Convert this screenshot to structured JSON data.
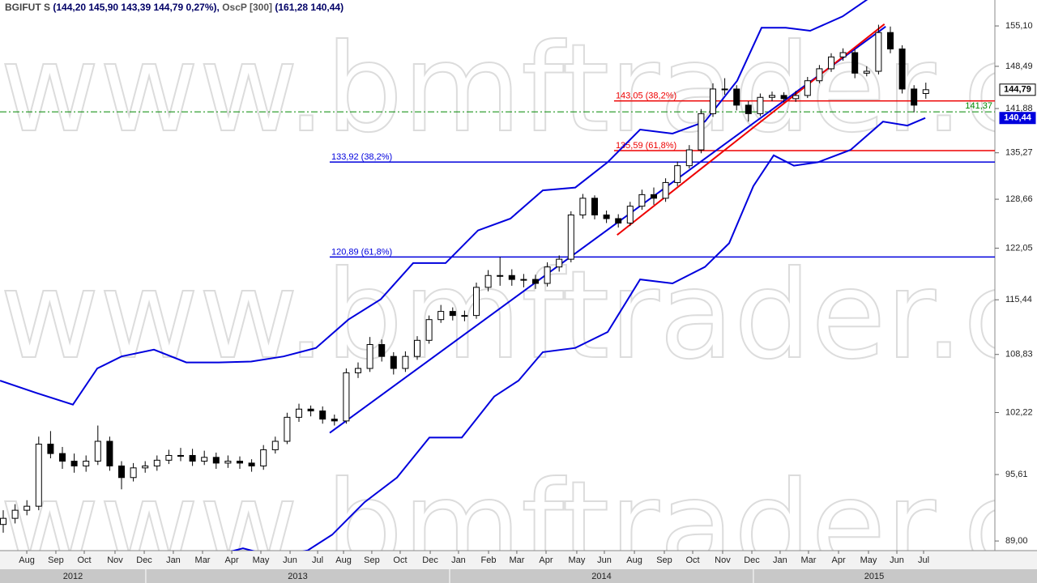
{
  "chart_data": {
    "type": "candlestick",
    "header": {
      "symbol": "BGIFUT S",
      "quote": "(144,20  145,90  143,39  144,79  0,27%),",
      "indicator": "OscP [300]",
      "indicator_values": "(161,28 140,44)"
    },
    "watermark": "www.bmftrader.com",
    "log_scale": true,
    "ylim": [
      88.08,
      159.5
    ],
    "yticks": [
      {
        "value": 155.1,
        "label": "155,10"
      },
      {
        "value": 148.49,
        "label": "148,49"
      },
      {
        "value": 141.88,
        "label": "141,88"
      },
      {
        "value": 135.27,
        "label": "135,27"
      },
      {
        "value": 128.66,
        "label": "128,66"
      },
      {
        "value": 122.05,
        "label": "122,05"
      },
      {
        "value": 115.44,
        "label": "115,44"
      },
      {
        "value": 108.83,
        "label": "108,83"
      },
      {
        "value": 102.22,
        "label": "102,22"
      },
      {
        "value": 95.61,
        "label": "95,61"
      },
      {
        "value": 89.0,
        "label": "89,00"
      }
    ],
    "xlim": [
      -0.274,
      83.836
    ],
    "xticks": [
      {
        "value": 1.99,
        "label": "Aug"
      },
      {
        "value": 4.45,
        "label": "Sep"
      },
      {
        "value": 6.85,
        "label": "Oct"
      },
      {
        "value": 9.45,
        "label": "Nov"
      },
      {
        "value": 11.92,
        "label": "Dec"
      },
      {
        "value": 14.38,
        "label": "Jan"
      },
      {
        "value": 16.85,
        "label": "Mar"
      },
      {
        "value": 19.32,
        "label": "Apr"
      },
      {
        "value": 21.78,
        "label": "May"
      },
      {
        "value": 24.25,
        "label": "Jun"
      },
      {
        "value": 26.58,
        "label": "Jul"
      },
      {
        "value": 28.77,
        "label": "Aug"
      },
      {
        "value": 31.16,
        "label": "Sep"
      },
      {
        "value": 33.56,
        "label": "Oct"
      },
      {
        "value": 36.1,
        "label": "Dec"
      },
      {
        "value": 38.49,
        "label": "Jan"
      },
      {
        "value": 41.03,
        "label": "Feb"
      },
      {
        "value": 43.42,
        "label": "Mar"
      },
      {
        "value": 45.89,
        "label": "Apr"
      },
      {
        "value": 48.49,
        "label": "May"
      },
      {
        "value": 50.82,
        "label": "Jun"
      },
      {
        "value": 53.36,
        "label": "Aug"
      },
      {
        "value": 55.89,
        "label": "Sep"
      },
      {
        "value": 58.29,
        "label": "Oct"
      },
      {
        "value": 60.82,
        "label": "Nov"
      },
      {
        "value": 63.29,
        "label": "Dec"
      },
      {
        "value": 65.68,
        "label": "Jan"
      },
      {
        "value": 68.08,
        "label": "Mar"
      },
      {
        "value": 70.62,
        "label": "Apr"
      },
      {
        "value": 73.15,
        "label": "May"
      },
      {
        "value": 75.55,
        "label": "Jun"
      },
      {
        "value": 77.81,
        "label": "Jul"
      }
    ],
    "years": [
      "2012",
      "2013",
      "2014",
      "2015"
    ],
    "year_breaks": [
      12.05,
      37.74,
      63.42
    ],
    "x": [
      0,
      1,
      2,
      3,
      4,
      5,
      6,
      7,
      8,
      9,
      10,
      11,
      12,
      13,
      14,
      15,
      16,
      17,
      18,
      19,
      20,
      21,
      22,
      23,
      24,
      25,
      26,
      27,
      28,
      29,
      30,
      31,
      32,
      33,
      34,
      35,
      36,
      37,
      38,
      39,
      40,
      41,
      42,
      43,
      44,
      45,
      46,
      47,
      48,
      49,
      50,
      51,
      52,
      53,
      54,
      55,
      56,
      57,
      58,
      59,
      60,
      61,
      62,
      63,
      64,
      65,
      66,
      67,
      68,
      69,
      70,
      71,
      72,
      73,
      74,
      75,
      76,
      77,
      78
    ],
    "ohlc": [
      [
        90.6,
        92.0,
        89.8,
        91.2
      ],
      [
        91.2,
        92.6,
        90.7,
        92.0
      ],
      [
        92.0,
        93.0,
        91.5,
        92.4
      ],
      [
        92.4,
        99.6,
        92.0,
        98.8
      ],
      [
        98.8,
        100.2,
        97.3,
        97.8
      ],
      [
        97.8,
        98.5,
        96.2,
        97.0
      ],
      [
        97.0,
        97.8,
        95.8,
        96.5
      ],
      [
        96.5,
        97.6,
        95.9,
        97.0
      ],
      [
        97.0,
        100.8,
        96.6,
        99.1
      ],
      [
        99.1,
        99.6,
        96.0,
        96.5
      ],
      [
        96.5,
        97.0,
        94.1,
        95.3
      ],
      [
        95.3,
        96.8,
        94.9,
        96.3
      ],
      [
        96.3,
        97.0,
        95.8,
        96.5
      ],
      [
        96.5,
        97.6,
        96.0,
        97.1
      ],
      [
        97.1,
        98.2,
        96.7,
        97.6
      ],
      [
        97.6,
        98.4,
        97.0,
        97.6
      ],
      [
        97.6,
        98.3,
        96.5,
        97.0
      ],
      [
        97.0,
        98.1,
        96.6,
        97.4
      ],
      [
        97.4,
        97.9,
        96.2,
        96.8
      ],
      [
        96.8,
        97.6,
        96.3,
        97.0
      ],
      [
        97.0,
        97.5,
        96.2,
        96.8
      ],
      [
        96.8,
        97.2,
        95.9,
        96.5
      ],
      [
        96.5,
        98.7,
        96.1,
        98.2
      ],
      [
        98.2,
        99.6,
        97.8,
        99.1
      ],
      [
        99.1,
        102.2,
        98.8,
        101.7
      ],
      [
        101.7,
        103.2,
        101.2,
        102.6
      ],
      [
        102.6,
        103.0,
        101.8,
        102.4
      ],
      [
        102.4,
        102.9,
        101.0,
        101.5
      ],
      [
        101.5,
        102.0,
        100.8,
        101.3
      ],
      [
        101.3,
        107.2,
        101.0,
        106.7
      ],
      [
        106.7,
        107.9,
        106.1,
        107.2
      ],
      [
        107.2,
        110.9,
        106.8,
        110.0
      ],
      [
        110.0,
        110.6,
        108.0,
        108.6
      ],
      [
        108.6,
        109.1,
        106.5,
        107.2
      ],
      [
        107.2,
        109.2,
        106.8,
        108.6
      ],
      [
        108.6,
        111.0,
        108.2,
        110.5
      ],
      [
        110.5,
        113.5,
        110.1,
        113.0
      ],
      [
        113.0,
        114.8,
        112.6,
        114.0
      ],
      [
        114.0,
        114.5,
        112.9,
        113.5
      ],
      [
        113.5,
        114.1,
        112.8,
        113.5
      ],
      [
        113.5,
        117.6,
        113.1,
        117.0
      ],
      [
        117.0,
        119.2,
        116.5,
        118.5
      ],
      [
        118.5,
        120.9,
        117.2,
        118.5
      ],
      [
        118.5,
        119.3,
        117.2,
        118.0
      ],
      [
        118.0,
        118.7,
        117.0,
        118.0
      ],
      [
        118.0,
        118.6,
        116.8,
        117.5
      ],
      [
        117.5,
        120.2,
        117.1,
        119.6
      ],
      [
        119.6,
        121.1,
        119.0,
        120.6
      ],
      [
        120.6,
        127.0,
        120.2,
        126.5
      ],
      [
        126.5,
        129.4,
        126.0,
        128.8
      ],
      [
        128.8,
        129.2,
        125.9,
        126.5
      ],
      [
        126.5,
        127.1,
        125.4,
        126.0
      ],
      [
        126.0,
        126.6,
        124.8,
        125.4
      ],
      [
        125.4,
        128.3,
        125.0,
        127.7
      ],
      [
        127.7,
        130.0,
        127.2,
        129.3
      ],
      [
        129.3,
        130.3,
        127.9,
        128.8
      ],
      [
        128.8,
        131.6,
        128.3,
        131.0
      ],
      [
        131.0,
        134.0,
        130.5,
        133.4
      ],
      [
        133.4,
        136.4,
        133.0,
        135.7
      ],
      [
        135.7,
        141.8,
        135.2,
        141.1
      ],
      [
        141.1,
        145.8,
        140.6,
        144.9
      ],
      [
        144.9,
        146.6,
        144.0,
        144.9
      ],
      [
        144.9,
        145.5,
        141.6,
        142.4
      ],
      [
        142.4,
        143.0,
        139.9,
        141.1
      ],
      [
        141.1,
        144.2,
        140.7,
        143.6
      ],
      [
        143.6,
        144.5,
        143.0,
        143.9
      ],
      [
        143.9,
        144.4,
        142.8,
        143.4
      ],
      [
        143.4,
        144.6,
        142.9,
        143.9
      ],
      [
        143.9,
        146.8,
        143.5,
        146.2
      ],
      [
        146.2,
        148.7,
        145.8,
        148.1
      ],
      [
        148.1,
        150.6,
        147.6,
        150.0
      ],
      [
        150.0,
        151.4,
        149.4,
        150.7
      ],
      [
        150.7,
        151.2,
        146.6,
        147.4
      ],
      [
        147.4,
        148.5,
        146.9,
        147.7
      ],
      [
        147.7,
        155.3,
        147.2,
        154.0
      ],
      [
        154.0,
        155.0,
        150.6,
        151.3
      ],
      [
        151.3,
        151.9,
        144.2,
        144.9
      ],
      [
        144.9,
        145.5,
        141.3,
        142.4
      ],
      [
        144.2,
        145.9,
        143.39,
        144.79
      ]
    ],
    "bands": [
      {
        "color": "#0000dd",
        "x": [
          -0.27,
          2.81,
          5.89,
          7.95,
          10.0,
          12.74,
          15.48,
          18.22,
          20.96,
          23.7,
          26.44,
          29.18,
          31.92,
          34.66,
          37.4,
          40.14,
          42.88,
          45.62,
          48.36,
          51.1,
          53.84,
          56.58,
          59.32,
          62.05,
          64.11,
          66.16,
          68.22,
          70.96,
          73.7
        ],
        "values": [
          105.8,
          104.4,
          103.1,
          107.2,
          108.6,
          109.4,
          107.9,
          107.9,
          108.0,
          108.6,
          109.6,
          113.0,
          115.5,
          120.1,
          120.1,
          124.4,
          126.0,
          129.9,
          130.3,
          133.9,
          138.7,
          138.1,
          139.9,
          146.2,
          154.8,
          154.8,
          154.3,
          156.7,
          160.5
        ]
      },
      {
        "color": "#0000dd",
        "x": [
          16.85,
          20.27,
          23.01,
          25.75,
          27.81,
          30.55,
          33.29,
          36.03,
          38.77,
          41.51,
          43.56,
          45.62,
          48.36,
          51.1,
          53.84,
          56.58,
          59.32,
          61.37,
          63.42,
          65.14,
          66.85,
          68.9,
          71.64,
          74.38,
          76.44,
          77.95
        ],
        "values": [
          87.3,
          88.3,
          87.5,
          88.1,
          89.6,
          92.8,
          95.3,
          99.5,
          99.5,
          104.0,
          105.8,
          109.1,
          109.6,
          111.5,
          118.0,
          117.5,
          119.6,
          122.7,
          130.5,
          134.9,
          133.4,
          133.9,
          135.7,
          139.9,
          139.3,
          140.44
        ]
      }
    ],
    "fib_levels": [
      {
        "value": 143.05,
        "label": "143,05 (38,2%)",
        "start": 51.64,
        "color": "#ee0000"
      },
      {
        "value": 135.59,
        "label": "135,59 (61,8%)",
        "start": 51.64,
        "color": "#ee0000"
      },
      {
        "value": 133.92,
        "label": "133,92 (38,2%)",
        "start": 27.6,
        "color": "#0000dd"
      },
      {
        "value": 120.89,
        "label": "120,89 (61,8%)",
        "start": 27.6,
        "color": "#0000dd"
      }
    ],
    "trend_lines": [
      {
        "x": [
          27.6,
          74.6
        ],
        "values": [
          100.0,
          155.0
        ],
        "color": "#0000dd"
      },
      {
        "x": [
          51.9,
          74.5
        ],
        "values": [
          123.8,
          155.4
        ],
        "color": "#ee0000"
      }
    ],
    "reference_line": {
      "value": 141.37,
      "label": "141,37",
      "color": "#008800"
    },
    "price_tags": [
      {
        "value": 144.79,
        "label": "144,79",
        "color": "#000000"
      },
      {
        "value": 140.44,
        "label": "140,44",
        "color": "#0000dd"
      }
    ]
  }
}
